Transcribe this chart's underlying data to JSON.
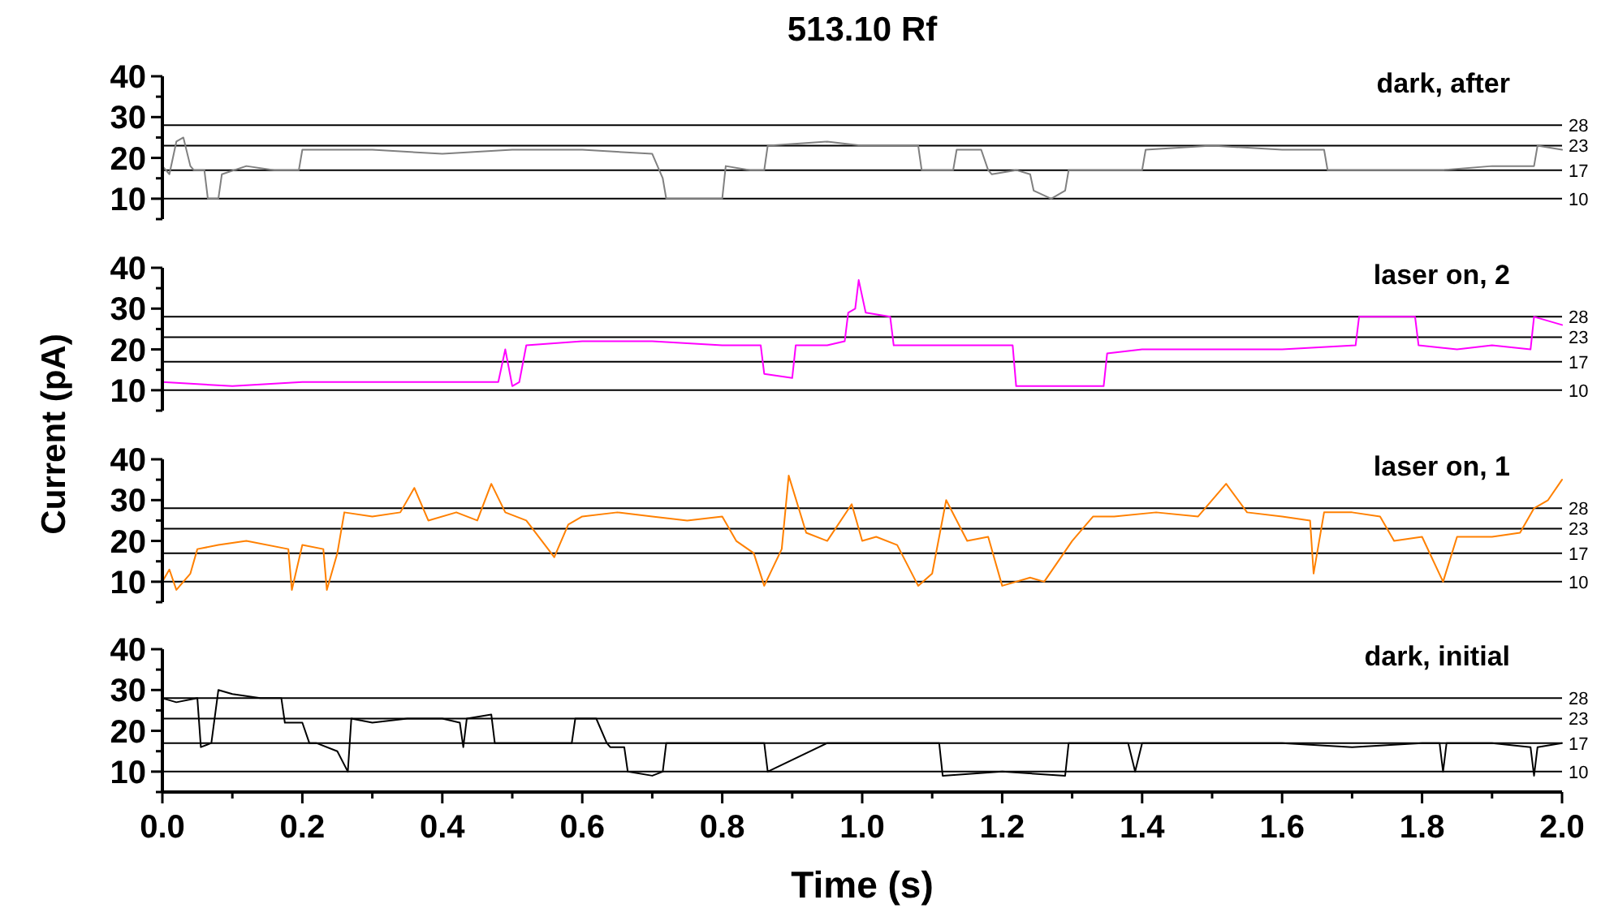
{
  "chart_data": [
    {
      "type": "line",
      "title": "513.10 Rf",
      "ylabel": "Current (pA)",
      "xlim": [
        0,
        2
      ],
      "ylim": [
        5,
        40
      ],
      "yticks": [
        {
          "value": 5,
          "label": null
        },
        10,
        {
          "value": 15,
          "label": null
        },
        20,
        {
          "value": 25,
          "label": null
        },
        30,
        {
          "value": 35,
          "label": null
        },
        40
      ],
      "tick_labels": "y",
      "grid": false,
      "ref_lines": [
        {
          "axis": "y",
          "value": 10,
          "label": "10",
          "color": "#000000"
        },
        {
          "axis": "y",
          "value": 17,
          "label": "17",
          "color": "#000000"
        },
        {
          "axis": "y",
          "value": 23,
          "label": "23",
          "color": "#000000"
        },
        {
          "axis": "y",
          "value": 28,
          "label": "28",
          "color": "#000000"
        }
      ],
      "annotations": [
        "dark, after"
      ],
      "series": [
        {
          "color": "#808080",
          "x": [
            0,
            0.01,
            0.02,
            0.03,
            0.04,
            0.045,
            0.06,
            0.065,
            0.08,
            0.085,
            0.12,
            0.16,
            0.195,
            0.2,
            0.3,
            0.4,
            0.5,
            0.6,
            0.7,
            0.715,
            0.72,
            0.76,
            0.8,
            0.805,
            0.84,
            0.86,
            0.865,
            0.95,
            1.0,
            1.08,
            1.085,
            1.12,
            1.13,
            1.135,
            1.17,
            1.18,
            1.185,
            1.22,
            1.24,
            1.245,
            1.27,
            1.29,
            1.295,
            1.35,
            1.4,
            1.405,
            1.5,
            1.6,
            1.66,
            1.665,
            1.75,
            1.83,
            1.9,
            1.96,
            1.965,
            2.0
          ],
          "values": [
            18,
            16,
            24,
            25,
            18,
            17,
            17,
            10,
            10,
            16,
            18,
            17,
            17,
            22,
            22,
            21,
            22,
            22,
            21,
            15,
            10,
            10,
            10,
            18,
            17,
            17,
            23,
            24,
            23,
            23,
            17,
            17,
            17,
            22,
            22,
            17,
            16,
            17,
            16,
            12,
            10,
            12,
            17,
            17,
            17,
            22,
            23,
            22,
            22,
            17,
            17,
            17,
            18,
            18,
            23,
            22
          ]
        }
      ]
    },
    {
      "type": "line",
      "xlim": [
        0,
        2
      ],
      "ylim": [
        5,
        40
      ],
      "yticks": [
        {
          "value": 5,
          "label": null
        },
        10,
        {
          "value": 15,
          "label": null
        },
        20,
        {
          "value": 25,
          "label": null
        },
        30,
        {
          "value": 35,
          "label": null
        },
        40
      ],
      "tick_labels": "y",
      "grid": false,
      "ref_lines": [
        {
          "axis": "y",
          "value": 10,
          "label": "10",
          "color": "#000000"
        },
        {
          "axis": "y",
          "value": 17,
          "label": "17",
          "color": "#000000"
        },
        {
          "axis": "y",
          "value": 23,
          "label": "23",
          "color": "#000000"
        },
        {
          "axis": "y",
          "value": 28,
          "label": "28",
          "color": "#000000"
        }
      ],
      "annotations": [
        "laser on, 2"
      ],
      "series": [
        {
          "color": "#ff00ff",
          "x": [
            0,
            0.1,
            0.2,
            0.3,
            0.4,
            0.48,
            0.49,
            0.5,
            0.51,
            0.52,
            0.6,
            0.7,
            0.8,
            0.855,
            0.86,
            0.9,
            0.905,
            0.95,
            0.975,
            0.98,
            0.99,
            0.995,
            1.005,
            1.04,
            1.045,
            1.1,
            1.16,
            1.215,
            1.22,
            1.28,
            1.345,
            1.35,
            1.4,
            1.5,
            1.6,
            1.705,
            1.71,
            1.75,
            1.79,
            1.795,
            1.85,
            1.9,
            1.955,
            1.96,
            2.0
          ],
          "values": [
            12,
            11,
            12,
            12,
            12,
            12,
            20,
            11,
            12,
            21,
            22,
            22,
            21,
            21,
            14,
            13,
            21,
            21,
            22,
            29,
            30,
            37,
            29,
            28,
            21,
            21,
            21,
            21,
            11,
            11,
            11,
            19,
            20,
            20,
            20,
            21,
            28,
            28,
            28,
            21,
            20,
            21,
            20,
            28,
            26
          ]
        }
      ]
    },
    {
      "type": "line",
      "xlim": [
        0,
        2
      ],
      "ylim": [
        5,
        40
      ],
      "yticks": [
        {
          "value": 5,
          "label": null
        },
        10,
        {
          "value": 15,
          "label": null
        },
        20,
        {
          "value": 25,
          "label": null
        },
        30,
        {
          "value": 35,
          "label": null
        },
        40
      ],
      "tick_labels": "y",
      "grid": false,
      "ref_lines": [
        {
          "axis": "y",
          "value": 10,
          "label": "10",
          "color": "#000000"
        },
        {
          "axis": "y",
          "value": 17,
          "label": "17",
          "color": "#000000"
        },
        {
          "axis": "y",
          "value": 23,
          "label": "23",
          "color": "#000000"
        },
        {
          "axis": "y",
          "value": 28,
          "label": "28",
          "color": "#000000"
        }
      ],
      "annotations": [
        "laser on, 1"
      ],
      "series": [
        {
          "color": "#ff8000",
          "x": [
            0,
            0.01,
            0.02,
            0.04,
            0.05,
            0.08,
            0.12,
            0.18,
            0.185,
            0.2,
            0.23,
            0.235,
            0.25,
            0.26,
            0.3,
            0.34,
            0.36,
            0.38,
            0.42,
            0.45,
            0.47,
            0.49,
            0.52,
            0.56,
            0.58,
            0.6,
            0.65,
            0.7,
            0.75,
            0.8,
            0.82,
            0.845,
            0.86,
            0.885,
            0.895,
            0.92,
            0.95,
            0.985,
            1.0,
            1.02,
            1.05,
            1.08,
            1.1,
            1.12,
            1.15,
            1.18,
            1.2,
            1.24,
            1.26,
            1.3,
            1.33,
            1.36,
            1.42,
            1.48,
            1.52,
            1.55,
            1.6,
            1.64,
            1.645,
            1.66,
            1.7,
            1.74,
            1.76,
            1.8,
            1.83,
            1.85,
            1.9,
            1.94,
            1.96,
            1.98,
            2.0
          ],
          "values": [
            10,
            13,
            8,
            12,
            18,
            19,
            20,
            18,
            8,
            19,
            18,
            8,
            17,
            27,
            26,
            27,
            33,
            25,
            27,
            25,
            34,
            27,
            25,
            16,
            24,
            26,
            27,
            26,
            25,
            26,
            20,
            17,
            9,
            18,
            36,
            22,
            20,
            29,
            20,
            21,
            19,
            9,
            12,
            30,
            20,
            21,
            9,
            11,
            10,
            20,
            26,
            26,
            27,
            26,
            34,
            27,
            26,
            25,
            12,
            27,
            27,
            26,
            20,
            21,
            10,
            21,
            21,
            22,
            28,
            30,
            35
          ]
        }
      ]
    },
    {
      "type": "line",
      "xlabel": "Time (s)",
      "xlim": [
        0,
        2
      ],
      "xticks": [
        {
          "value": 0,
          "label": "0.0"
        },
        {
          "value": 0.1,
          "label": null
        },
        0.2,
        {
          "value": 0.3,
          "label": null
        },
        0.4,
        {
          "value": 0.5,
          "label": null
        },
        0.6,
        {
          "value": 0.7,
          "label": null
        },
        0.8,
        {
          "value": 0.9,
          "label": null
        },
        {
          "value": 1,
          "label": "1.0"
        },
        {
          "value": 1.1,
          "label": null
        },
        1.2,
        {
          "value": 1.3,
          "label": null
        },
        1.4,
        {
          "value": 1.5,
          "label": null
        },
        1.6,
        {
          "value": 1.7,
          "label": null
        },
        1.8,
        {
          "value": 1.9,
          "label": null
        },
        {
          "value": 2,
          "label": "2.0"
        }
      ],
      "ylim": [
        5,
        40
      ],
      "yticks": [
        {
          "value": 5,
          "label": null
        },
        10,
        {
          "value": 15,
          "label": null
        },
        20,
        {
          "value": 25,
          "label": null
        },
        30,
        {
          "value": 35,
          "label": null
        },
        40
      ],
      "grid": false,
      "ref_lines": [
        {
          "axis": "y",
          "value": 10,
          "label": "10",
          "color": "#000000"
        },
        {
          "axis": "y",
          "value": 17,
          "label": "17",
          "color": "#000000"
        },
        {
          "axis": "y",
          "value": 23,
          "label": "23",
          "color": "#000000"
        },
        {
          "axis": "y",
          "value": 28,
          "label": "28",
          "color": "#000000"
        }
      ],
      "annotations": [
        "dark, initial"
      ],
      "series": [
        {
          "color": "#000000",
          "x": [
            0,
            0.02,
            0.05,
            0.055,
            0.07,
            0.08,
            0.1,
            0.14,
            0.17,
            0.175,
            0.2,
            0.21,
            0.22,
            0.25,
            0.265,
            0.27,
            0.3,
            0.35,
            0.4,
            0.425,
            0.43,
            0.435,
            0.47,
            0.475,
            0.5,
            0.55,
            0.585,
            0.59,
            0.62,
            0.635,
            0.64,
            0.66,
            0.665,
            0.7,
            0.715,
            0.72,
            0.8,
            0.86,
            0.865,
            0.95,
            1.05,
            1.11,
            1.115,
            1.2,
            1.29,
            1.295,
            1.38,
            1.39,
            1.4,
            1.5,
            1.6,
            1.7,
            1.8,
            1.825,
            1.83,
            1.835,
            1.9,
            1.955,
            1.96,
            1.965,
            2.0
          ],
          "values": [
            28,
            27,
            28,
            16,
            17,
            30,
            29,
            28,
            28,
            22,
            22,
            17,
            17,
            15,
            10,
            23,
            22,
            23,
            23,
            22,
            16,
            23,
            24,
            17,
            17,
            17,
            17,
            23,
            23,
            17,
            16,
            16,
            10,
            9,
            10,
            17,
            17,
            17,
            10,
            17,
            17,
            17,
            9,
            10,
            9,
            17,
            17,
            10,
            17,
            17,
            17,
            16,
            17,
            17,
            10,
            17,
            17,
            16,
            9,
            16,
            17
          ]
        }
      ]
    }
  ]
}
